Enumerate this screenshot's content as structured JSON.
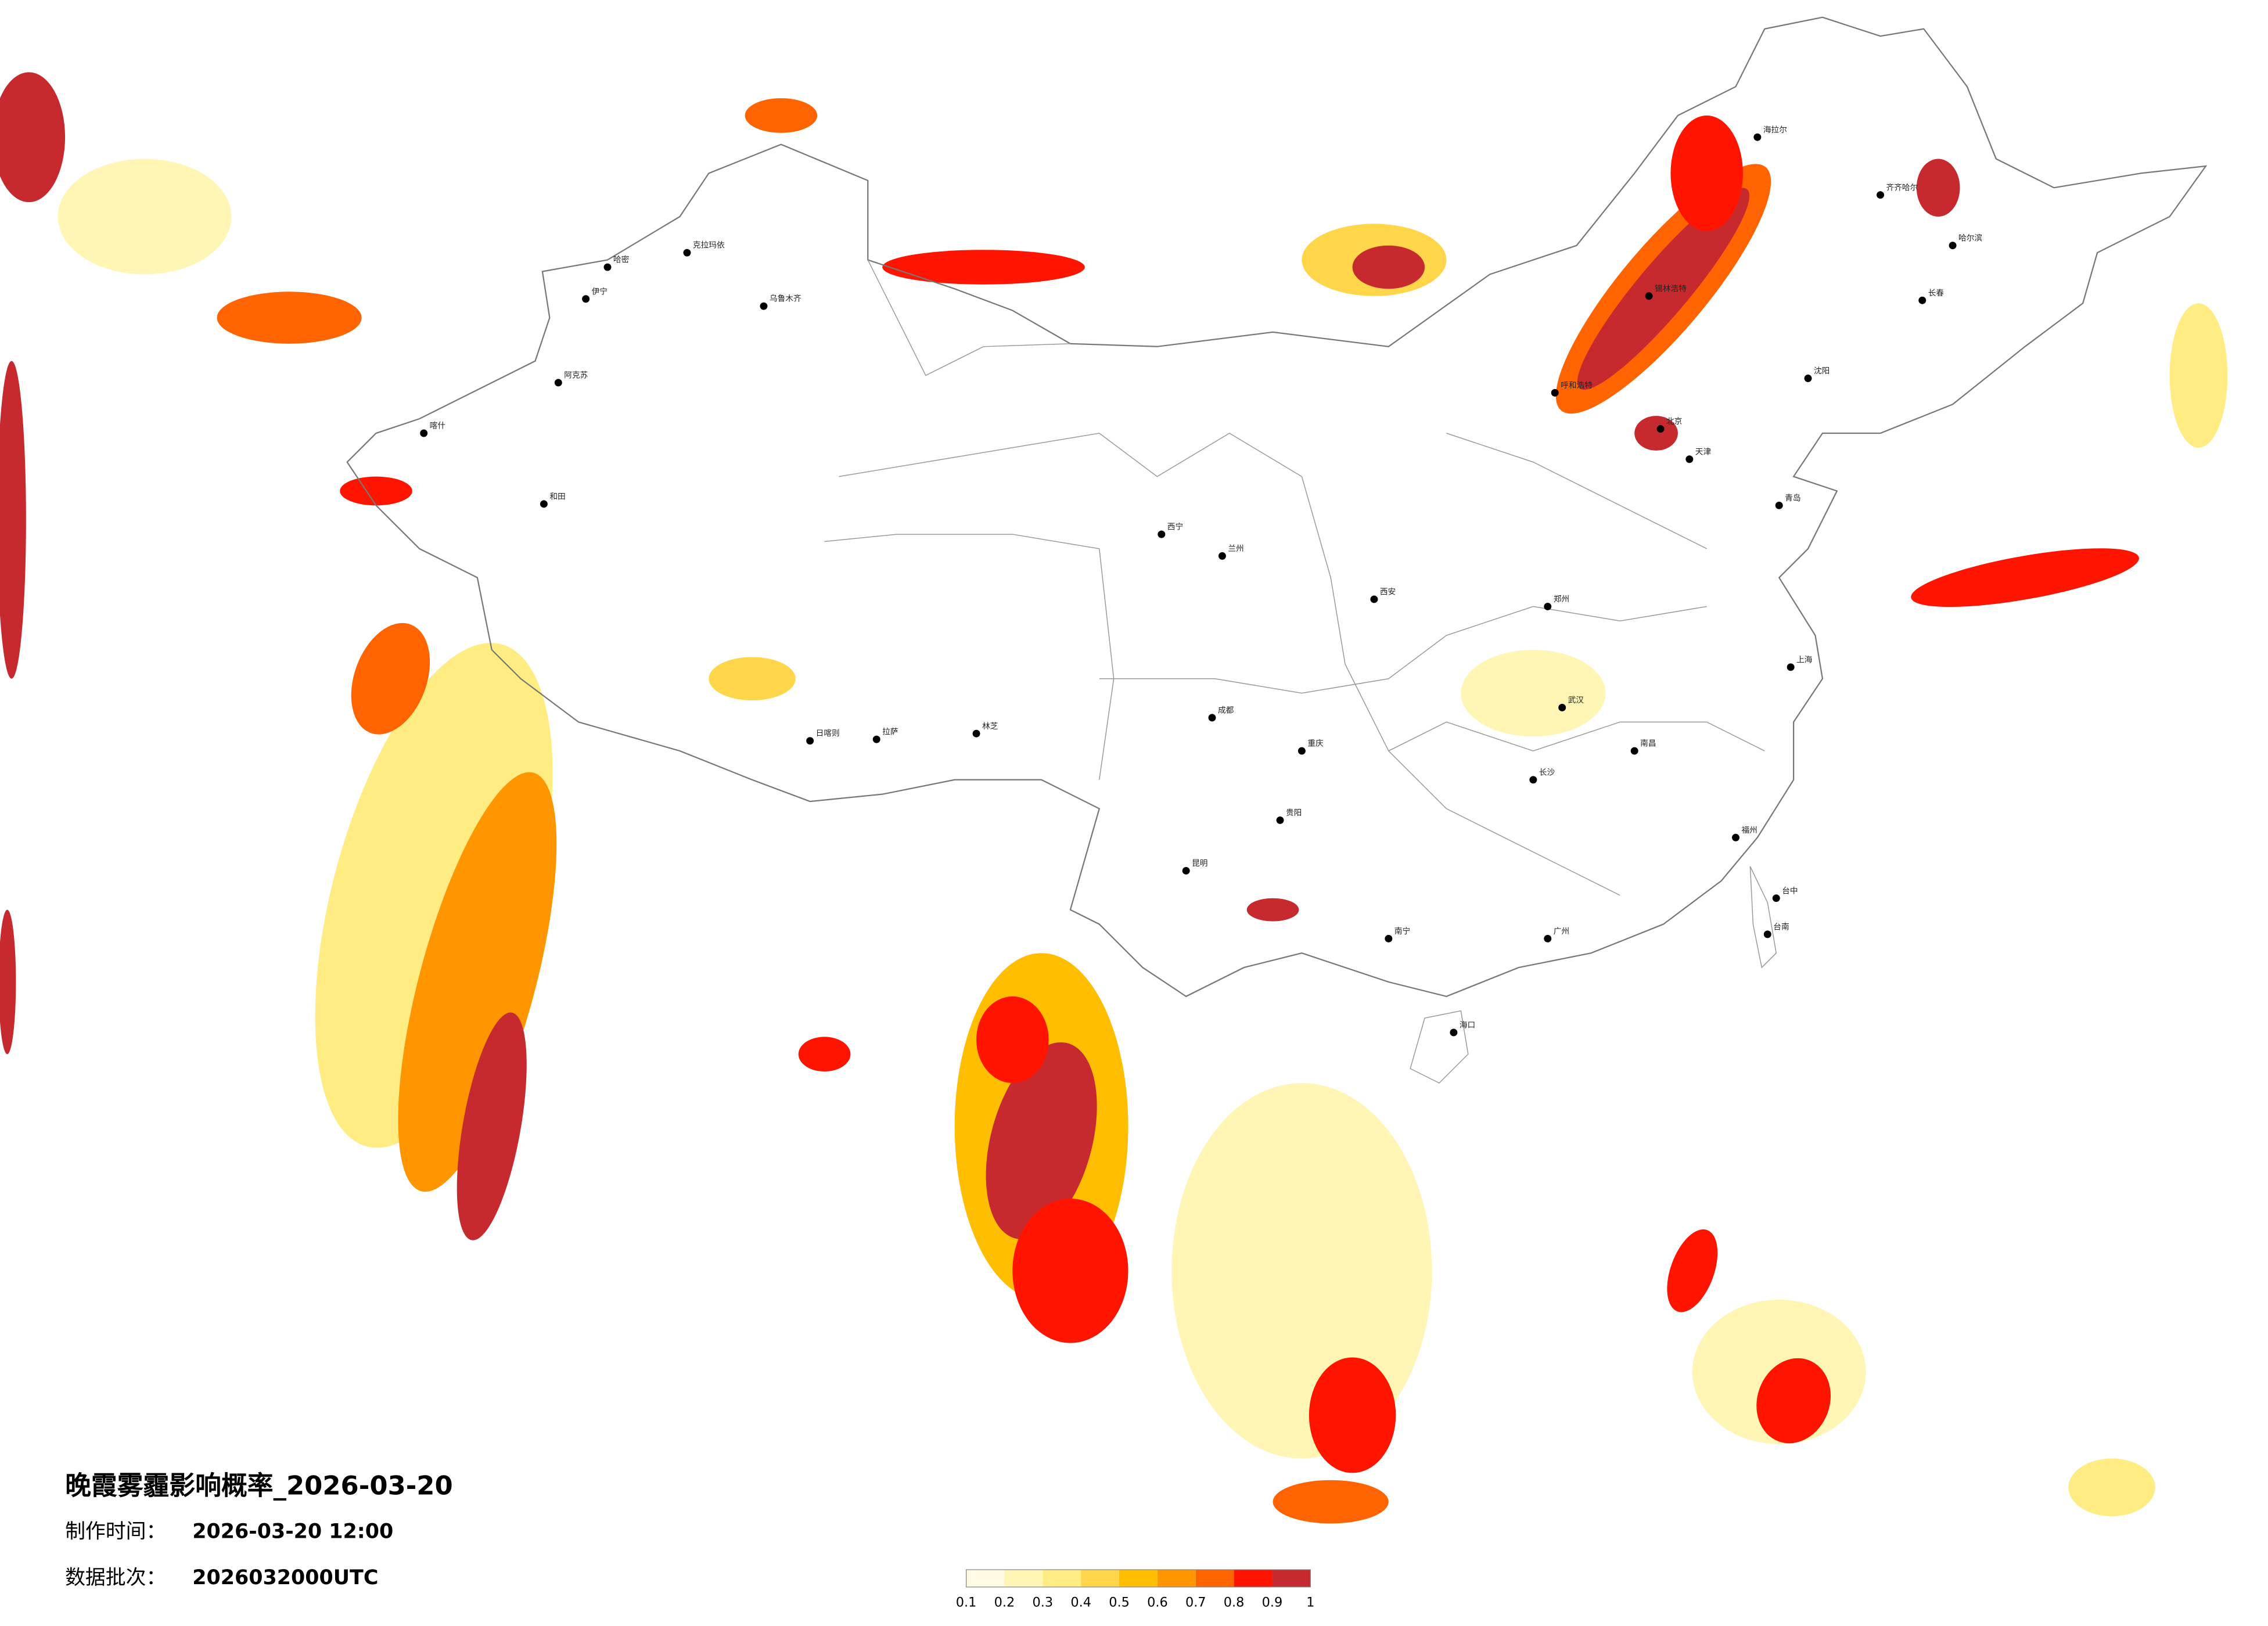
{
  "header": {
    "title": "晚霞雾霾影响概率_2026-03-20",
    "time_label": "制作时间：",
    "time": "2026-03-20 12:00",
    "batch_label": "数据批次：",
    "batch": "2026032000UTC"
  },
  "legend": {
    "ticks": [
      0.1,
      0.2,
      0.3,
      0.4,
      0.5,
      0.6,
      0.7,
      0.8,
      0.9,
      1
    ],
    "colors": [
      "#fffbe3",
      "#fff5b4",
      "#ffec82",
      "#ffd64a",
      "#ffbe00",
      "#ff9600",
      "#ff6400",
      "#ff1400",
      "#c62a2e"
    ]
  },
  "cities": [
    "克拉玛依",
    "乌鲁木齐",
    "伊宁",
    "阿克苏",
    "喀什",
    "和田",
    "哈密",
    "拉萨",
    "日喀则",
    "林芝",
    "西宁",
    "兰州",
    "成都",
    "重庆",
    "昆明",
    "贵阳",
    "北京",
    "天津",
    "上海",
    "广州",
    "南宁",
    "海口",
    "哈尔滨",
    "长春",
    "沈阳",
    "海拉尔",
    "齐齐哈尔",
    "锡林浩特",
    "呼和浩特",
    "武汉",
    "长沙",
    "南昌",
    "福州",
    "台中",
    "台南",
    "青岛",
    "郑州",
    "西安"
  ]
}
